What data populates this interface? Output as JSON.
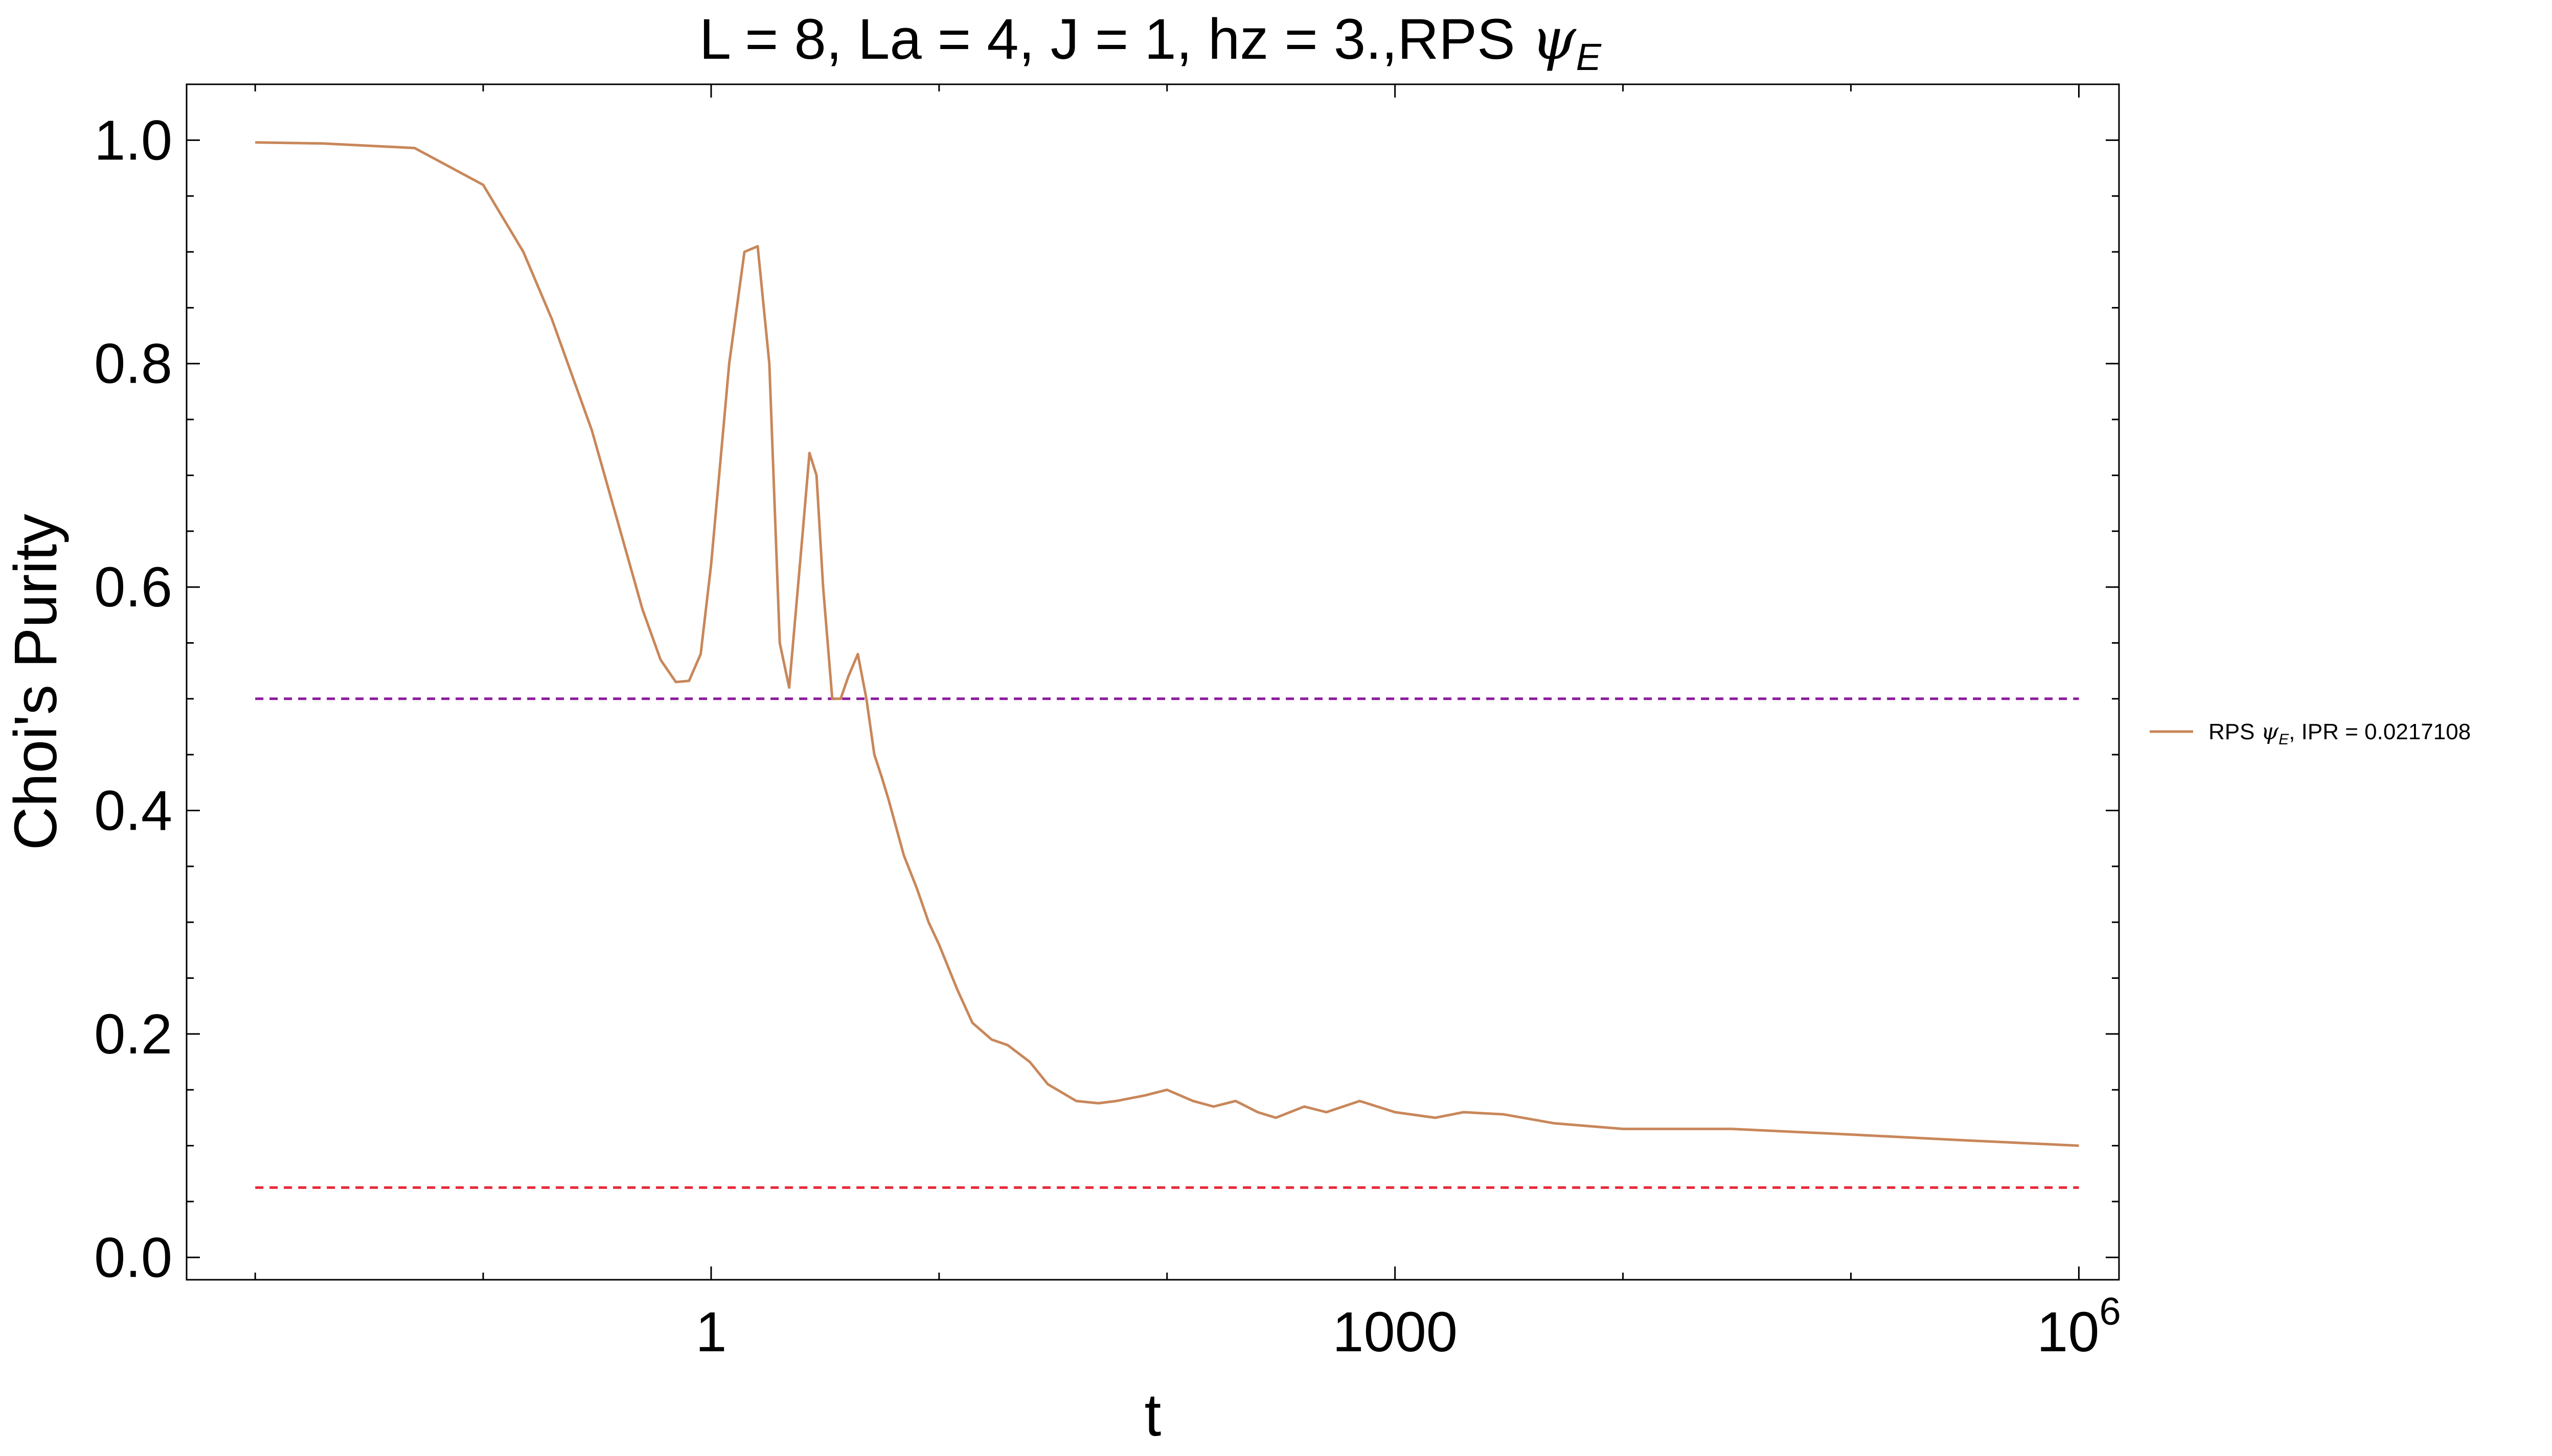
{
  "chart_data": {
    "type": "line",
    "title_prefix": "L = 8, La = 4, J = 1, hz = 3.,RPS ",
    "title_symbol": "ψ",
    "title_subscript": "E",
    "xlabel": "t",
    "ylabel": "Choi's Purity",
    "x_scale": "log",
    "xlim": [
      0.005,
      1500000
    ],
    "ylim": [
      -0.02,
      1.05
    ],
    "x_ticks": [
      {
        "value": 1,
        "label": "1"
      },
      {
        "value": 1000,
        "label": "1000"
      },
      {
        "value": 1000000,
        "label_base": "10",
        "label_exp": "6"
      }
    ],
    "y_ticks": [
      {
        "value": 0.0,
        "label": "0.0"
      },
      {
        "value": 0.2,
        "label": "0.2"
      },
      {
        "value": 0.4,
        "label": "0.4"
      },
      {
        "value": 0.6,
        "label": "0.6"
      },
      {
        "value": 0.8,
        "label": "0.8"
      },
      {
        "value": 1.0,
        "label": "1.0"
      }
    ],
    "grid": false,
    "legend_position": "right",
    "series": [
      {
        "name_prefix": "RPS ",
        "name_symbol": "ψ",
        "name_subscript": "E",
        "name_suffix": ", IPR = 0.0217108",
        "color": "#c8875a",
        "x": [
          0.01,
          0.02,
          0.05,
          0.1,
          0.15,
          0.2,
          0.3,
          0.4,
          0.5,
          0.6,
          0.7,
          0.8,
          0.9,
          1.0,
          1.2,
          1.4,
          1.6,
          1.8,
          2.0,
          2.2,
          2.5,
          2.7,
          2.9,
          3.1,
          3.4,
          3.7,
          4.0,
          4.4,
          4.8,
          5.2,
          5.6,
          6.0,
          7,
          8,
          9,
          10,
          12,
          14,
          17,
          20,
          25,
          30,
          40,
          50,
          60,
          80,
          100,
          130,
          160,
          200,
          250,
          300,
          400,
          500,
          700,
          1000,
          1500,
          2000,
          3000,
          5000,
          10000,
          30000,
          100000,
          300000,
          1000000
        ],
        "y": [
          0.998,
          0.997,
          0.993,
          0.96,
          0.9,
          0.84,
          0.74,
          0.65,
          0.58,
          0.535,
          0.515,
          0.516,
          0.54,
          0.62,
          0.8,
          0.9,
          0.905,
          0.8,
          0.55,
          0.51,
          0.64,
          0.72,
          0.7,
          0.6,
          0.5,
          0.5,
          0.52,
          0.54,
          0.5,
          0.45,
          0.43,
          0.41,
          0.36,
          0.33,
          0.3,
          0.28,
          0.24,
          0.21,
          0.195,
          0.19,
          0.175,
          0.155,
          0.14,
          0.138,
          0.14,
          0.145,
          0.15,
          0.14,
          0.135,
          0.14,
          0.13,
          0.125,
          0.135,
          0.13,
          0.14,
          0.13,
          0.125,
          0.13,
          0.128,
          0.12,
          0.115,
          0.115,
          0.11,
          0.105,
          0.1
        ]
      }
    ],
    "reference_lines": [
      {
        "y": 0.5,
        "color": "#8b1a9c",
        "style": "dashed"
      },
      {
        "y": 0.0625,
        "color": "#e8283a",
        "style": "dashed"
      }
    ]
  }
}
